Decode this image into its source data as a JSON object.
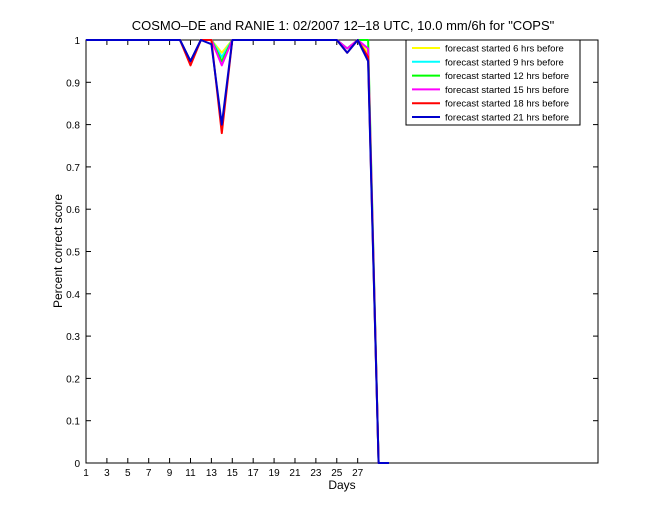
{
  "chart_data": {
    "type": "line",
    "title": "COSMO–DE and RANIE 1: 02/2007 12–18 UTC, 10.0 mm/6h for \"COPS\"",
    "xlabel": "Days",
    "ylabel": "Percent correct score",
    "xlim": [
      1,
      50
    ],
    "ylim": [
      0,
      1
    ],
    "x_ticks": [
      1,
      3,
      5,
      7,
      9,
      11,
      13,
      15,
      17,
      19,
      21,
      23,
      25,
      27
    ],
    "x_tick_labels": [
      "1",
      "3",
      "5",
      "7",
      "9",
      "11",
      "13",
      "15",
      "17",
      "19",
      "21",
      "23",
      "25",
      "27"
    ],
    "y_ticks": [
      0,
      0.1,
      0.2,
      0.3,
      0.4,
      0.5,
      0.6,
      0.7,
      0.8,
      0.9,
      1
    ],
    "y_tick_labels": [
      "0",
      "0.1",
      "0.2",
      "0.3",
      "0.4",
      "0.5",
      "0.6",
      "0.7",
      "0.8",
      "0.9",
      "1"
    ],
    "grid": false,
    "legend_position": "top-right",
    "x": [
      1,
      2,
      3,
      4,
      5,
      6,
      7,
      8,
      9,
      10,
      11,
      12,
      13,
      14,
      15,
      16,
      17,
      18,
      19,
      20,
      21,
      22,
      23,
      24,
      25,
      26,
      27,
      28,
      29,
      30
    ],
    "series": [
      {
        "name": "forecast started 6 hrs before",
        "color": "#ffff00",
        "values": [
          1,
          1,
          1,
          1,
          1,
          1,
          1,
          1,
          1,
          1,
          0.95,
          1,
          1,
          0.97,
          1,
          1,
          1,
          1,
          1,
          1,
          1,
          1,
          1,
          1,
          1,
          0.98,
          1,
          0.97,
          0,
          0
        ]
      },
      {
        "name": "forecast started 9 hrs before",
        "color": "#00ffff",
        "values": [
          1,
          1,
          1,
          1,
          1,
          1,
          1,
          1,
          1,
          1,
          0.95,
          1,
          1,
          0.96,
          1,
          1,
          1,
          1,
          1,
          1,
          1,
          1,
          1,
          1,
          1,
          0.98,
          1,
          0.98,
          0,
          0
        ]
      },
      {
        "name": "forecast started 12 hrs before",
        "color": "#00ff00",
        "values": [
          1,
          1,
          1,
          1,
          1,
          1,
          1,
          1,
          1,
          1,
          0.95,
          1,
          1,
          0.95,
          1,
          1,
          1,
          1,
          1,
          1,
          1,
          1,
          1,
          1,
          1,
          0.98,
          1,
          1,
          0,
          0
        ]
      },
      {
        "name": "forecast started 15 hrs before",
        "color": "#ff00ff",
        "values": [
          1,
          1,
          1,
          1,
          1,
          1,
          1,
          1,
          1,
          1,
          0.95,
          1,
          1,
          0.94,
          1,
          1,
          1,
          1,
          1,
          1,
          1,
          1,
          1,
          1,
          1,
          0.98,
          1,
          0.98,
          0,
          0
        ]
      },
      {
        "name": "forecast started 18 hrs before",
        "color": "#ff0000",
        "values": [
          1,
          1,
          1,
          1,
          1,
          1,
          1,
          1,
          1,
          1,
          0.94,
          1,
          1,
          0.78,
          1,
          1,
          1,
          1,
          1,
          1,
          1,
          1,
          1,
          1,
          1,
          0.97,
          1,
          0.96,
          0,
          0
        ]
      },
      {
        "name": "forecast started 21 hrs before",
        "color": "#0000cc",
        "values": [
          1,
          1,
          1,
          1,
          1,
          1,
          1,
          1,
          1,
          1,
          0.95,
          1,
          0.99,
          0.8,
          1,
          1,
          1,
          1,
          1,
          1,
          1,
          1,
          1,
          1,
          1,
          0.97,
          1,
          0.95,
          0,
          0
        ]
      }
    ]
  }
}
